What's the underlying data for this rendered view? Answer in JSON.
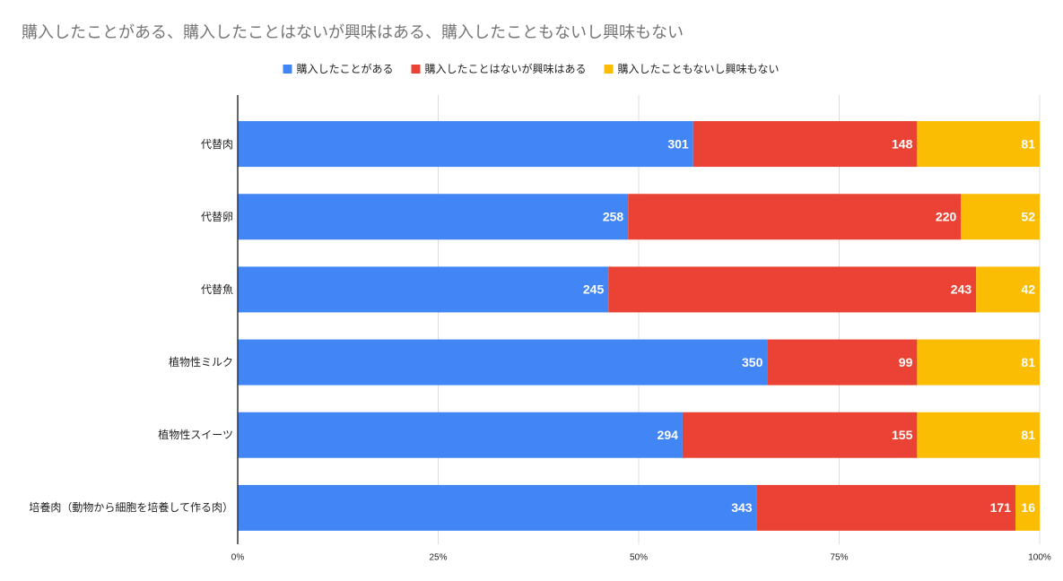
{
  "chart_data": {
    "type": "bar",
    "orientation": "horizontal",
    "stacking": "percent",
    "title": "購入したことがある、購入したことはないが興味はある、購入したこともないし興味もない",
    "categories": [
      "代替肉",
      "代替卵",
      "代替魚",
      "植物性ミルク",
      "植物性スイーツ",
      "培養肉（動物から細胞を培養して作る肉）"
    ],
    "series": [
      {
        "name": "購入したことがある",
        "color": "#4285f4",
        "values": [
          301,
          258,
          245,
          350,
          294,
          343
        ]
      },
      {
        "name": "購入したことはないが興味はある",
        "color": "#ea4335",
        "values": [
          148,
          220,
          243,
          99,
          155,
          171
        ]
      },
      {
        "name": "購入したこともないし興味もない",
        "color": "#fbbc04",
        "values": [
          81,
          52,
          42,
          81,
          81,
          16
        ]
      }
    ],
    "xlim": [
      0,
      100
    ],
    "xticks": [
      {
        "value": 0,
        "label": "0%"
      },
      {
        "value": 25,
        "label": "25%"
      },
      {
        "value": 50,
        "label": "50%"
      },
      {
        "value": 75,
        "label": "75%"
      },
      {
        "value": 100,
        "label": "100%"
      }
    ],
    "grid": true,
    "legend": "top"
  }
}
